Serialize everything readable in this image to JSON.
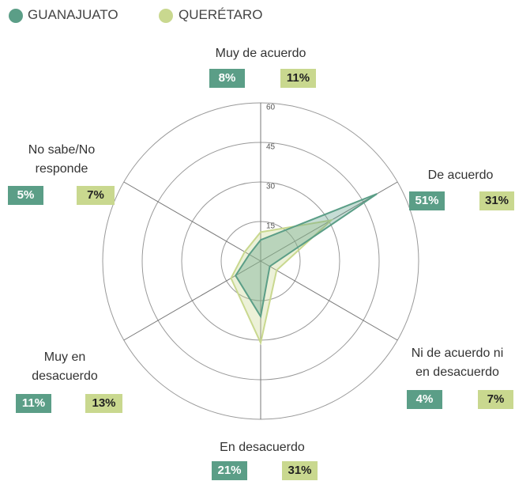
{
  "chart_data": {
    "type": "radar",
    "categories": [
      "Muy de acuerdo",
      "De acuerdo",
      "Ni de acuerdo ni en desacuerdo",
      "En desacuerdo",
      "Muy en desacuerdo",
      "No sabe/No responde"
    ],
    "series": [
      {
        "name": "GUANAJUATO",
        "color": "#5b9e87",
        "values": [
          8,
          51,
          4,
          21,
          11,
          5
        ],
        "value_labels": [
          "8%",
          "51%",
          "4%",
          "21%",
          "11%",
          "5%"
        ]
      },
      {
        "name": "QUERÉTARO",
        "color": "#c9d88f",
        "values": [
          11,
          31,
          7,
          31,
          13,
          7
        ],
        "value_labels": [
          "11%",
          "31%",
          "7%",
          "31%",
          "13%",
          "7%"
        ]
      }
    ],
    "ylim": [
      0,
      60
    ],
    "yticks": [
      15,
      30,
      45,
      60
    ],
    "grid": true
  }
}
